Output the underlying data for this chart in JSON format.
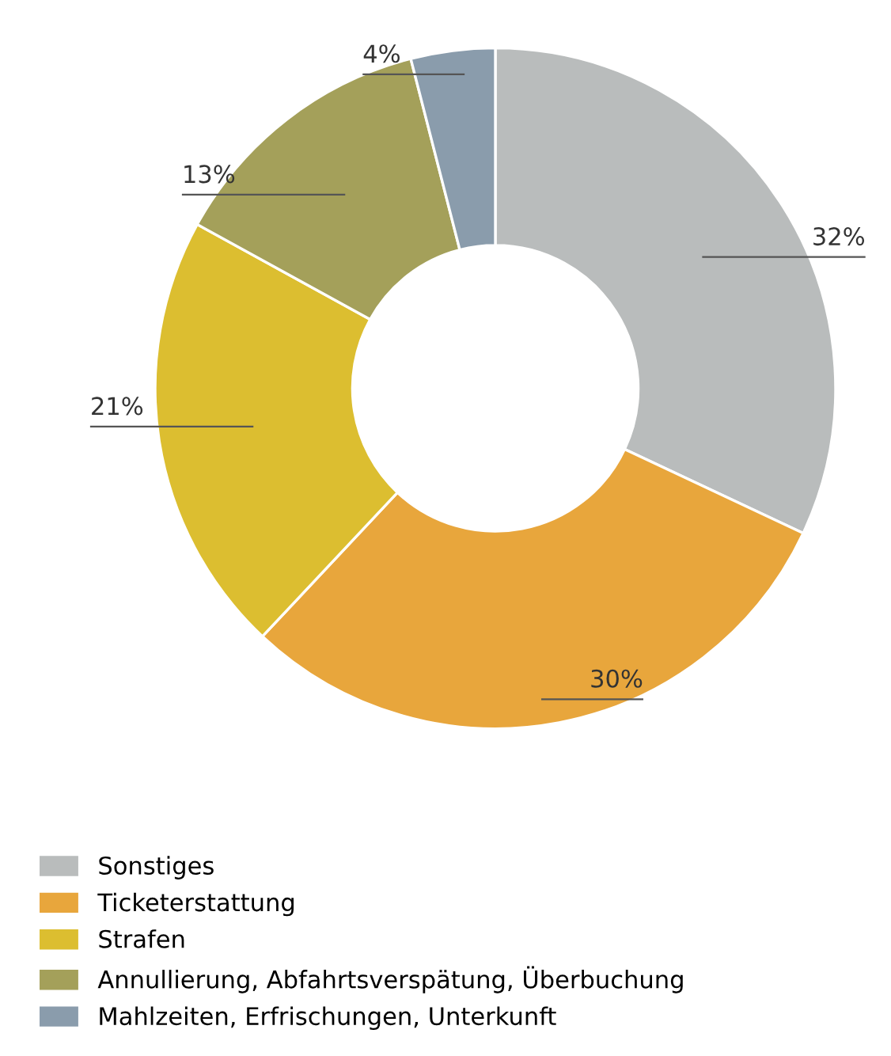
{
  "chart_data": {
    "type": "donut",
    "categories": [
      "Sonstiges",
      "Ticketerstattung",
      "Strafen",
      "Annullierung, Abfahrtsverspätung, Überbuchung",
      "Mahlzeiten, Erfrischungen, Unterkunft"
    ],
    "values": [
      32,
      30,
      21,
      13,
      4
    ],
    "colors": [
      "#b9bcbc",
      "#e8a63c",
      "#dcbe30",
      "#a4a05a",
      "#8a9cac"
    ],
    "value_labels": [
      "32%",
      "30%",
      "21%",
      "13%",
      "4%"
    ],
    "legend": "bottom left"
  }
}
